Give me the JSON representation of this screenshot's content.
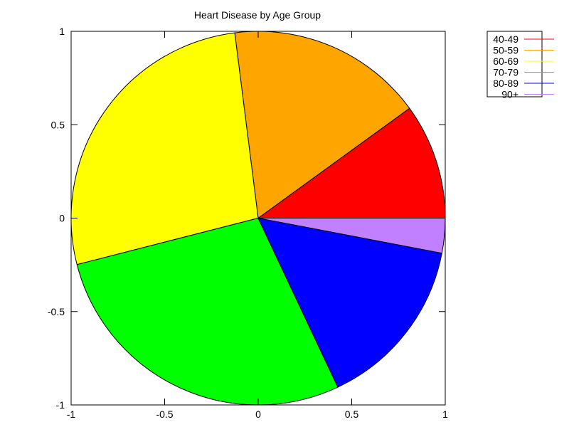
{
  "chart_data": {
    "type": "pie",
    "title": "Heart Disease by Age Group",
    "xlim": [
      -1,
      1
    ],
    "ylim": [
      -1,
      1
    ],
    "xticks": [
      "-1",
      "-0.5",
      "0",
      "0.5",
      "1"
    ],
    "yticks": [
      "1",
      "0.5",
      "0",
      "-0.5",
      "-1"
    ],
    "legend_position": "top-right",
    "categories": [
      "40-49",
      "50-59",
      "60-69",
      "70-79",
      "80-89",
      "90+"
    ],
    "values": [
      10,
      17,
      27,
      28,
      15,
      3
    ],
    "colors": [
      "#ff0000",
      "#ffa500",
      "#ffff00",
      "#00ff00",
      "#0000ff",
      "#c080ff"
    ]
  }
}
